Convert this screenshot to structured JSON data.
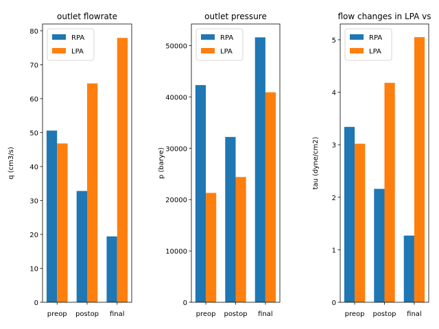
{
  "chart_data": [
    {
      "type": "bar",
      "title": "outlet flowrate",
      "xlabel": "",
      "ylabel": "q (cm3/s)",
      "categories": [
        "preop",
        "postop",
        "final"
      ],
      "series": [
        {
          "name": "RPA",
          "values": [
            50.6,
            32.8,
            19.4
          ]
        },
        {
          "name": "LPA",
          "values": [
            46.8,
            64.5,
            77.9
          ]
        }
      ],
      "ylim": [
        0,
        82
      ],
      "yticks": [
        0,
        10,
        20,
        30,
        40,
        50,
        60,
        70,
        80
      ],
      "legend": "top-left",
      "grid": false
    },
    {
      "type": "bar",
      "title": "outlet pressure",
      "xlabel": "",
      "ylabel": "p (barye)",
      "categories": [
        "preop",
        "postop",
        "final"
      ],
      "series": [
        {
          "name": "RPA",
          "values": [
            42300,
            32200,
            51600
          ]
        },
        {
          "name": "LPA",
          "values": [
            21300,
            24400,
            40900
          ]
        }
      ],
      "ylim": [
        0,
        54200
      ],
      "yticks": [
        0,
        10000,
        20000,
        30000,
        40000,
        50000
      ],
      "legend": "top-left",
      "grid": false
    },
    {
      "type": "bar",
      "title": "flow changes in LPA vs",
      "xlabel": "",
      "ylabel": "tau (dyne/cm2)",
      "categories": [
        "preop",
        "postop",
        "final"
      ],
      "series": [
        {
          "name": "RPA",
          "values": [
            3.34,
            2.16,
            1.27
          ]
        },
        {
          "name": "LPA",
          "values": [
            3.02,
            4.18,
            5.05
          ]
        }
      ],
      "ylim": [
        0,
        5.3
      ],
      "yticks": [
        0,
        1,
        2,
        3,
        4,
        5
      ],
      "legend": "top-left",
      "grid": false
    }
  ],
  "colors": {
    "RPA": "#1f77b4",
    "LPA": "#ff7f0e"
  }
}
